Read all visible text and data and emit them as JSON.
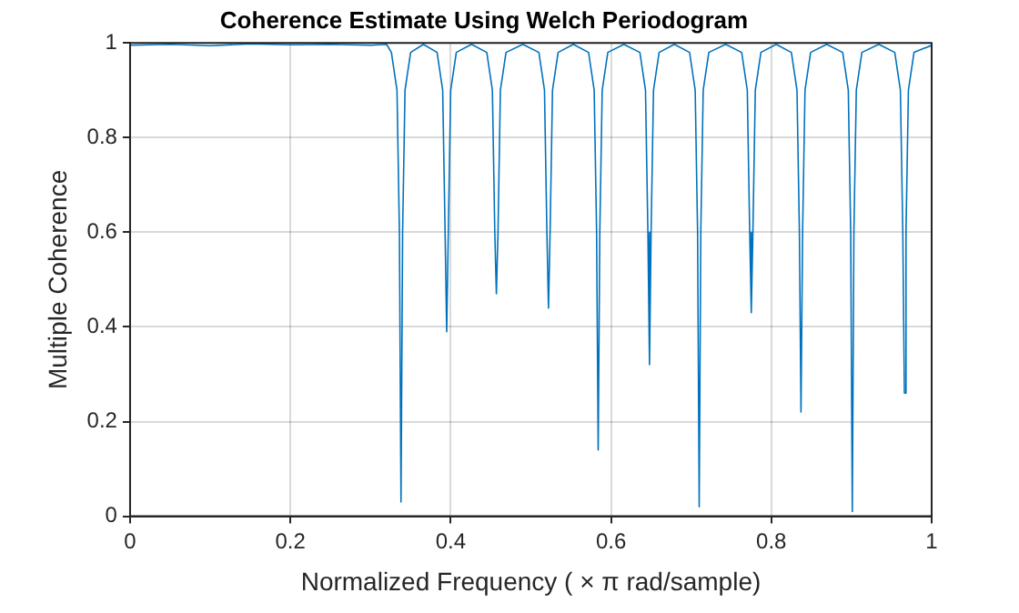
{
  "chart_data": {
    "type": "line",
    "title": "Coherence Estimate Using Welch Periodogram",
    "xlabel": "Normalized Frequency ( × π rad/sample)",
    "ylabel": "Multiple Coherence",
    "xlim": [
      0,
      1
    ],
    "ylim": [
      0,
      1
    ],
    "xticks": [
      0,
      0.2,
      0.4,
      0.6,
      0.8,
      1
    ],
    "yticks": [
      0,
      0.2,
      0.4,
      0.6,
      0.8,
      1
    ],
    "grid": true,
    "legend": false,
    "marker": "none",
    "line_style": "solid",
    "series": [
      {
        "color": "#0072bd",
        "x": [
          0,
          0.05,
          0.1,
          0.15,
          0.2,
          0.25,
          0.3,
          0.32,
          0.326,
          0.333,
          0.336,
          0.338,
          0.34,
          0.343,
          0.35,
          0.366,
          0.383,
          0.39,
          0.393,
          0.395,
          0.397,
          0.4,
          0.407,
          0.426,
          0.445,
          0.452,
          0.455,
          0.457,
          0.459,
          0.462,
          0.469,
          0.49,
          0.51,
          0.517,
          0.52,
          0.522,
          0.524,
          0.527,
          0.534,
          0.553,
          0.572,
          0.579,
          0.582,
          0.584,
          0.586,
          0.589,
          0.596,
          0.616,
          0.636,
          0.643,
          0.646,
          0.648,
          0.65,
          0.653,
          0.66,
          0.679,
          0.698,
          0.705,
          0.708,
          0.71,
          0.712,
          0.715,
          0.722,
          0.743,
          0.763,
          0.77,
          0.773,
          0.775,
          0.777,
          0.78,
          0.787,
          0.806,
          0.825,
          0.832,
          0.835,
          0.837,
          0.839,
          0.842,
          0.849,
          0.869,
          0.889,
          0.896,
          0.899,
          0.901,
          0.903,
          0.906,
          0.913,
          0.934,
          0.954,
          0.961,
          0.964,
          0.966,
          0.968,
          0.971,
          0.978,
          1
        ],
        "values": [
          0.995,
          0.997,
          0.994,
          0.998,
          0.996,
          0.997,
          0.995,
          0.997,
          0.98,
          0.9,
          0.6,
          0.03,
          0.6,
          0.9,
          0.98,
          0.997,
          0.98,
          0.9,
          0.6,
          0.39,
          0.6,
          0.9,
          0.98,
          0.997,
          0.98,
          0.9,
          0.6,
          0.47,
          0.6,
          0.9,
          0.98,
          0.997,
          0.98,
          0.9,
          0.6,
          0.44,
          0.6,
          0.9,
          0.98,
          0.997,
          0.98,
          0.9,
          0.6,
          0.14,
          0.6,
          0.9,
          0.98,
          0.997,
          0.98,
          0.9,
          0.6,
          0.32,
          0.6,
          0.9,
          0.98,
          0.997,
          0.98,
          0.9,
          0.6,
          0.02,
          0.6,
          0.9,
          0.98,
          0.997,
          0.98,
          0.9,
          0.6,
          0.43,
          0.6,
          0.9,
          0.98,
          0.997,
          0.98,
          0.9,
          0.6,
          0.22,
          0.6,
          0.9,
          0.98,
          0.997,
          0.98,
          0.9,
          0.6,
          0.01,
          0.6,
          0.9,
          0.98,
          0.997,
          0.98,
          0.9,
          0.6,
          0.26,
          0.6,
          0.9,
          0.98,
          0.995
        ]
      }
    ]
  }
}
